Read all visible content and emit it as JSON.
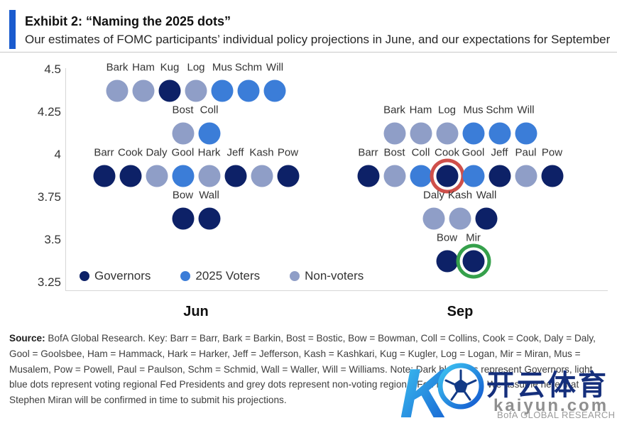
{
  "header": {
    "exhibit_title": "Exhibit 2: “Naming the 2025 dots”",
    "subtitle": "Our estimates of FOMC participants’ individual policy projections in June, and our expectations for September",
    "accent_color": "#1a5bce"
  },
  "chart_data": {
    "type": "scatter",
    "title": "Exhibit 2: “Naming the 2025 dots”",
    "ylabel": "",
    "xlabel": "",
    "ylim": [
      3.25,
      4.5
    ],
    "grid": false,
    "legend_position": "bottom-left",
    "yticks": [
      {
        "label": "4.5",
        "value": 4.5
      },
      {
        "label": "4.25",
        "value": 4.25
      },
      {
        "label": "4",
        "value": 4.0
      },
      {
        "label": "3.75",
        "value": 3.75
      },
      {
        "label": "3.5",
        "value": 3.5
      },
      {
        "label": "3.25",
        "value": 3.25
      }
    ],
    "colors": {
      "governor": "#0d2167",
      "voter2025": "#3b7dd8",
      "nonvoter": "#8f9ec7"
    },
    "highlight_rings": {
      "red": "#cf4f4a",
      "green": "#35a04b"
    },
    "legend": [
      {
        "label": "Governors",
        "category": "governor"
      },
      {
        "label": "2025 Voters",
        "category": "voter2025"
      },
      {
        "label": "Non-voters",
        "category": "nonvoter"
      }
    ],
    "groups": [
      {
        "label": "Jun",
        "rows": [
          {
            "rate": 4.375,
            "dots": [
              {
                "name": "Bark",
                "cat": "nonvoter"
              },
              {
                "name": "Ham",
                "cat": "nonvoter"
              },
              {
                "name": "Kug",
                "cat": "governor"
              },
              {
                "name": "Log",
                "cat": "nonvoter"
              },
              {
                "name": "Mus",
                "cat": "voter2025"
              },
              {
                "name": "Schm",
                "cat": "voter2025"
              },
              {
                "name": "Will",
                "cat": "voter2025"
              }
            ]
          },
          {
            "rate": 4.125,
            "dots": [
              {
                "name": "Bost",
                "cat": "nonvoter"
              },
              {
                "name": "Coll",
                "cat": "voter2025"
              }
            ]
          },
          {
            "rate": 3.875,
            "dots": [
              {
                "name": "Barr",
                "cat": "governor"
              },
              {
                "name": "Cook",
                "cat": "governor"
              },
              {
                "name": "Daly",
                "cat": "nonvoter"
              },
              {
                "name": "Gool",
                "cat": "voter2025"
              },
              {
                "name": "Hark",
                "cat": "nonvoter"
              },
              {
                "name": "Jeff",
                "cat": "governor"
              },
              {
                "name": "Kash",
                "cat": "nonvoter"
              },
              {
                "name": "Pow",
                "cat": "governor"
              }
            ]
          },
          {
            "rate": 3.625,
            "dots": [
              {
                "name": "Bow",
                "cat": "governor"
              },
              {
                "name": "Wall",
                "cat": "governor"
              }
            ]
          }
        ]
      },
      {
        "label": "Sep",
        "rows": [
          {
            "rate": 4.125,
            "dots": [
              {
                "name": "Bark",
                "cat": "nonvoter"
              },
              {
                "name": "Ham",
                "cat": "nonvoter"
              },
              {
                "name": "Log",
                "cat": "nonvoter"
              },
              {
                "name": "Mus",
                "cat": "voter2025"
              },
              {
                "name": "Schm",
                "cat": "voter2025"
              },
              {
                "name": "Will",
                "cat": "voter2025"
              }
            ]
          },
          {
            "rate": 3.875,
            "dots": [
              {
                "name": "Barr",
                "cat": "governor"
              },
              {
                "name": "Bost",
                "cat": "nonvoter"
              },
              {
                "name": "Coll",
                "cat": "voter2025"
              },
              {
                "name": "Cook",
                "cat": "governor",
                "ring": "red"
              },
              {
                "name": "Gool",
                "cat": "voter2025"
              },
              {
                "name": "Jeff",
                "cat": "governor"
              },
              {
                "name": "Paul",
                "cat": "nonvoter"
              },
              {
                "name": "Pow",
                "cat": "governor"
              }
            ]
          },
          {
            "rate": 3.625,
            "dots": [
              {
                "name": "Daly",
                "cat": "nonvoter"
              },
              {
                "name": "Kash",
                "cat": "nonvoter"
              },
              {
                "name": "Wall",
                "cat": "governor"
              }
            ]
          },
          {
            "rate": 3.375,
            "dots": [
              {
                "name": "Bow",
                "cat": "governor"
              },
              {
                "name": "Mir",
                "cat": "governor",
                "ring": "green"
              }
            ]
          }
        ]
      }
    ]
  },
  "footer": {
    "source_label": "Source:",
    "source_text": " BofA Global Research. Key: Barr = Barr, Bark = Barkin, Bost = Bostic, Bow = Bowman, Coll = Collins, Cook = Cook, Daly = Daly, Gool = Goolsbee, Ham = Hammack, Hark = Harker, Jeff = Jefferson, Kash = Kashkari, Kug = Kugler, Log = Logan, Mir = Miran, Mus = Musalem, Pow = Powell, Paul = Paulson, Schm = Schmid, Wall = Waller, Will = Williams. Note: Dark blue dots represent Governors, light blue dots represent voting regional Fed Presidents and grey dots represent non-voting regional Fed Presidents. We assume here that Stephen Miran will be confirmed in time to submit his projections."
  },
  "watermark": {
    "cn_text": "开云体育",
    "domain": "kaiyun.com",
    "brand": "BofA GLOBAL RESEARCH"
  }
}
